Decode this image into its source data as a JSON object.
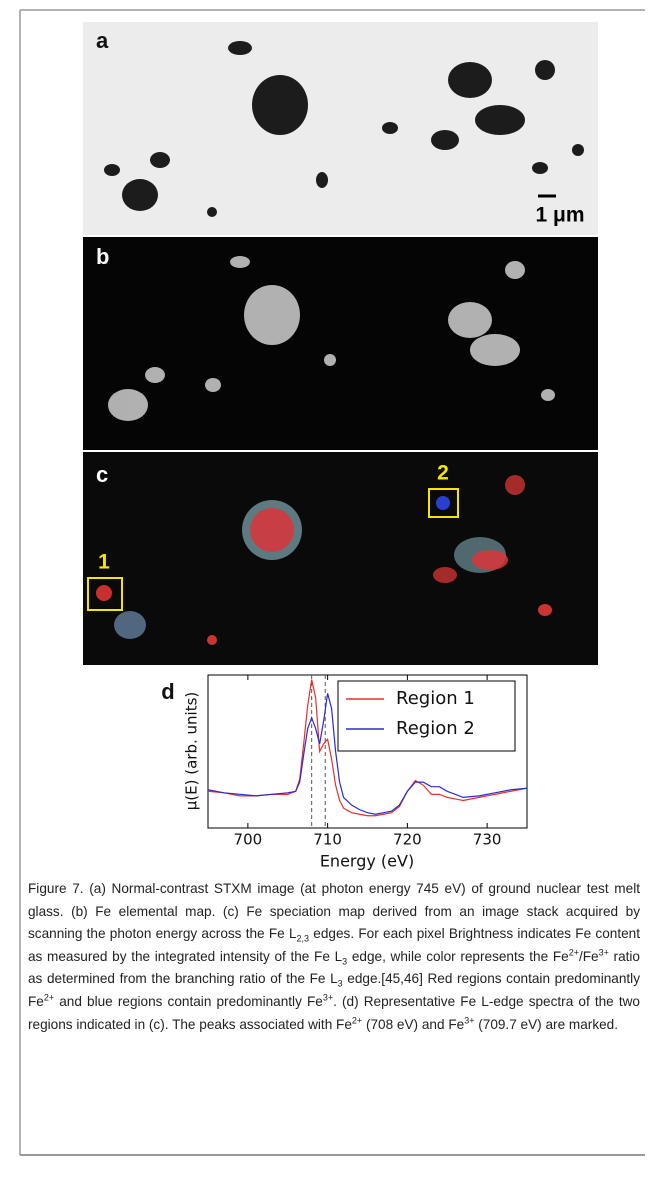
{
  "figure": {
    "panels": {
      "a": {
        "label": "a",
        "scale_bar": "1 μm"
      },
      "b": {
        "label": "b"
      },
      "c": {
        "label": "c",
        "regions": [
          "1",
          "2"
        ]
      }
    }
  },
  "chart_data": {
    "type": "line",
    "label": "d",
    "xlabel": "Energy (eV)",
    "ylabel": "μ(E) (arb. units)",
    "x": [
      695,
      697,
      699,
      701,
      703,
      705,
      706,
      706.5,
      707,
      707.5,
      708,
      708.5,
      709,
      709.5,
      710,
      710.5,
      711,
      711.5,
      712,
      713,
      714,
      715,
      716,
      717,
      718,
      719,
      720,
      721,
      722,
      723,
      724,
      725,
      726,
      727,
      729,
      731,
      733,
      735
    ],
    "series": [
      {
        "name": "Region 1",
        "color": "#e8302a",
        "values": [
          0.24,
          0.23,
          0.21,
          0.21,
          0.22,
          0.22,
          0.24,
          0.32,
          0.55,
          0.8,
          0.97,
          0.85,
          0.5,
          0.55,
          0.58,
          0.45,
          0.28,
          0.18,
          0.13,
          0.1,
          0.09,
          0.08,
          0.08,
          0.09,
          0.1,
          0.14,
          0.24,
          0.31,
          0.28,
          0.22,
          0.22,
          0.2,
          0.19,
          0.18,
          0.2,
          0.22,
          0.24,
          0.26
        ]
      },
      {
        "name": "Region 2",
        "color": "#2b2bd6",
        "values": [
          0.25,
          0.23,
          0.22,
          0.21,
          0.22,
          0.23,
          0.24,
          0.3,
          0.48,
          0.65,
          0.72,
          0.65,
          0.55,
          0.7,
          0.88,
          0.78,
          0.5,
          0.3,
          0.2,
          0.15,
          0.12,
          0.1,
          0.09,
          0.1,
          0.11,
          0.15,
          0.24,
          0.3,
          0.3,
          0.27,
          0.27,
          0.24,
          0.22,
          0.2,
          0.21,
          0.23,
          0.25,
          0.26
        ]
      }
    ],
    "vlines": [
      708,
      709.7
    ],
    "xlim": [
      695,
      735
    ],
    "xticks": [
      700,
      710,
      720,
      730
    ],
    "ylim": [
      0,
      1
    ],
    "legend": "upper right"
  },
  "caption": [
    {
      "text": "Figure 7. (a) Normal-contrast STXM image (at photon energy 745 eV) of ground nuclear test melt glass. (b) Fe elemental map. (c) Fe speciation map derived from an image stack acquired by scanning the photon energy across the Fe L",
      "style": "normal"
    },
    {
      "text": "2,3",
      "style": "sub"
    },
    {
      "text": " edges. For each pixel Brightness indicates Fe content as measured by the integrated intensity of the Fe L",
      "style": "normal"
    },
    {
      "text": "3",
      "style": "sub"
    },
    {
      "text": " edge, while color represents the Fe",
      "style": "normal"
    },
    {
      "text": "2+",
      "style": "sup"
    },
    {
      "text": "/Fe",
      "style": "normal"
    },
    {
      "text": "3+",
      "style": "sup"
    },
    {
      "text": " ratio as determined from the branching ratio of the Fe L",
      "style": "normal"
    },
    {
      "text": "3",
      "style": "sub"
    },
    {
      "text": " edge.[45,46] Red regions contain predominantly Fe",
      "style": "normal"
    },
    {
      "text": "2+",
      "style": "sup"
    },
    {
      "text": " and blue regions contain predominantly Fe",
      "style": "normal"
    },
    {
      "text": "3+",
      "style": "sup"
    },
    {
      "text": ". (d) Representative Fe L-edge spectra of the two regions indicated in (c). The peaks associated with Fe",
      "style": "normal"
    },
    {
      "text": "2+",
      "style": "sup"
    },
    {
      "text": " (708 eV) and Fe",
      "style": "normal"
    },
    {
      "text": "3+",
      "style": "sup"
    },
    {
      "text": " (709.7 eV) are marked.",
      "style": "normal"
    }
  ]
}
